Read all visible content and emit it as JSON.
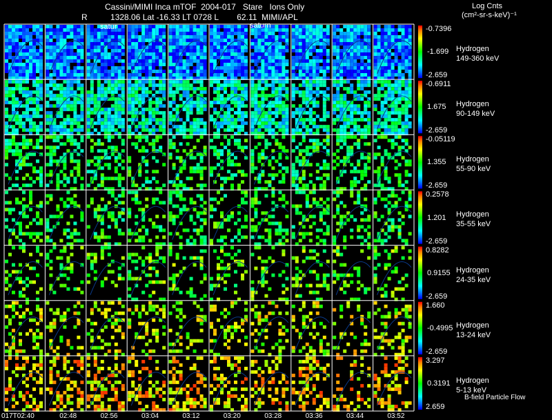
{
  "header": {
    "title": "Cassini/MIMI Inca mTOF  2004-017   Stare   Ions Only",
    "subtitle_R": "R",
    "subtitle_values": "1328.06 Lat -16.33 LT 0728 L        62.11  MIMI/APL",
    "units_title": "Log Cnts",
    "units_sub": "(cm²-sr-s-keV)⁻¹"
  },
  "planet_labels": [
    "satur",
    "saturn"
  ],
  "footer_label": "B-field Particle Flow",
  "chart_data": {
    "type": "heatmap",
    "title": "Cassini/MIMI Inca mTOF  2004-017   Stare   Ions Only",
    "time_labels": [
      "017T02:40",
      "02:48",
      "02:56",
      "03:04",
      "03:12",
      "03:20",
      "03:28",
      "03:36",
      "03:44",
      "03:52"
    ],
    "colorbar": "rainbow (blue=low, red=high)",
    "rows": [
      {
        "species": "Hydrogen",
        "energy": "149-360 keV",
        "max": "-0.7396",
        "mid": "-1.699",
        "min": "-2.659",
        "fill": 0.95,
        "bias": 0.12
      },
      {
        "species": "Hydrogen",
        "energy": "90-149 keV",
        "max": "-0.6911",
        "mid": "1.675",
        "min": "-2.659",
        "fill": 0.75,
        "bias": 0.3
      },
      {
        "species": "Hydrogen",
        "energy": "55-90 keV",
        "max": "-0.05119",
        "mid": "1.355",
        "min": "-2.659",
        "fill": 0.42,
        "bias": 0.45
      },
      {
        "species": "Hydrogen",
        "energy": "35-55 keV",
        "max": "0.2578",
        "mid": "1.201",
        "min": "-2.659",
        "fill": 0.33,
        "bias": 0.48
      },
      {
        "species": "Hydrogen",
        "energy": "24-35 keV",
        "max": "0.8282",
        "mid": "0.9155",
        "min": "-2.659",
        "fill": 0.25,
        "bias": 0.55
      },
      {
        "species": "Hydrogen",
        "energy": "13-24 keV",
        "max": "1.660",
        "mid": "-0.4995",
        "min": "-2.659",
        "fill": 0.28,
        "bias": 0.68
      },
      {
        "species": "Hydrogen",
        "energy": "5-13 keV",
        "max": "3.297",
        "mid": "0.3191",
        "min": "2.659",
        "fill": 0.35,
        "bias": 0.78
      }
    ]
  }
}
